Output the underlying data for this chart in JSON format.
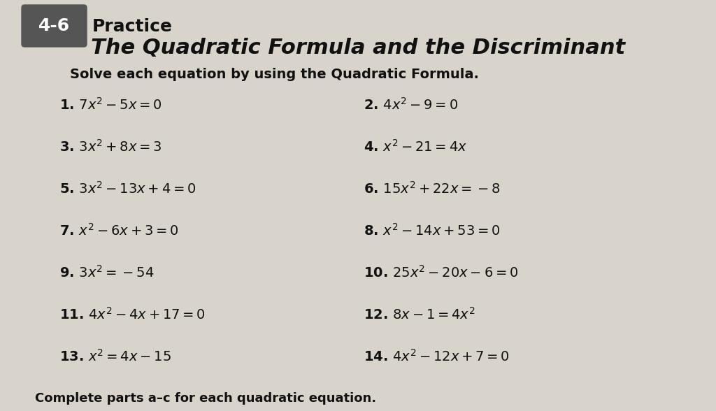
{
  "section_label": "4-6",
  "section_title": "Practice",
  "subtitle": "The Quadratic Formula and the Discriminant",
  "instruction": "Solve each equation by using the Quadratic Formula.",
  "background_color": "#d8d4cc",
  "problems": [
    {
      "num": "1.",
      "eq": "$7x^2 - 5x = 0$",
      "col": 0,
      "row": 0
    },
    {
      "num": "2.",
      "eq": "$4x^2 - 9 = 0$",
      "col": 1,
      "row": 0
    },
    {
      "num": "3.",
      "eq": "$3x^2 + 8x = 3$",
      "col": 0,
      "row": 1
    },
    {
      "num": "4.",
      "eq": "$x^2 - 21 = 4x$",
      "col": 1,
      "row": 1
    },
    {
      "num": "5.",
      "eq": "$3x^2 - 13x + 4 = 0$",
      "col": 0,
      "row": 2
    },
    {
      "num": "6.",
      "eq": "$15x^2 + 22x = -8$",
      "col": 1,
      "row": 2
    },
    {
      "num": "7.",
      "eq": "$x^2 - 6x + 3 = 0$",
      "col": 0,
      "row": 3
    },
    {
      "num": "8.",
      "eq": "$x^2 - 14x + 53 = 0$",
      "col": 1,
      "row": 3
    },
    {
      "num": "9.",
      "eq": "$3x^2 = -54$",
      "col": 0,
      "row": 4
    },
    {
      "num": "10.",
      "eq": "$25x^2 - 20x - 6 = 0$",
      "col": 1,
      "row": 4
    },
    {
      "num": "11.",
      "eq": "$4x^2 - 4x + 17 = 0$",
      "col": 0,
      "row": 5
    },
    {
      "num": "12.",
      "eq": "$8x - 1 = 4x^2$",
      "col": 1,
      "row": 5
    },
    {
      "num": "13.",
      "eq": "$x^2 = 4x - 15$",
      "col": 0,
      "row": 6
    },
    {
      "num": "14.",
      "eq": "$4x^2 - 12x + 7 = 0$",
      "col": 1,
      "row": 6
    }
  ],
  "footer": "Complete parts a–c for each quadratic equation.",
  "label_box_color": "#555555",
  "label_text_color": "#ffffff",
  "label_font_size": 18,
  "title_font_size": 18,
  "subtitle_font_size": 22,
  "instruction_font_size": 14,
  "problem_font_size": 14,
  "footer_font_size": 13
}
